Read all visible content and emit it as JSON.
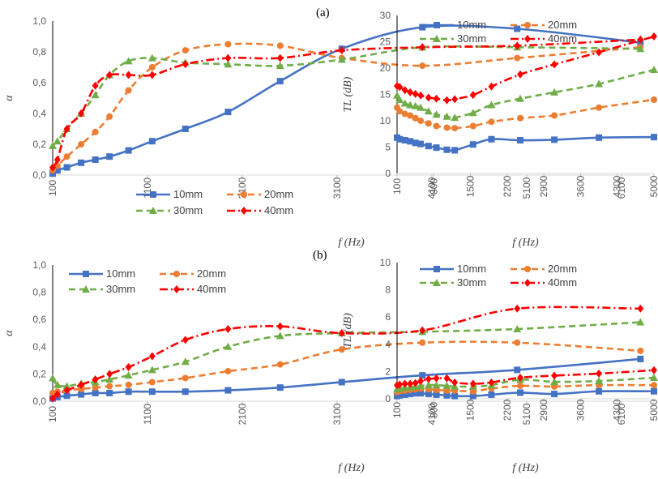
{
  "chart_data": [
    {
      "type": "line",
      "panel": "(a)",
      "xlabel": "f (Hz)",
      "ylabel": "α",
      "xlim": [
        100,
        6400
      ],
      "ylim": [
        0,
        1
      ],
      "xticks": [
        100,
        1100,
        2100,
        3100,
        4100,
        5100,
        6100
      ],
      "yticks": [
        0,
        0.2,
        0.4,
        0.6,
        0.8,
        1.0
      ],
      "ytick_labels": [
        "0,0",
        "0,2",
        "0,4",
        "0,6",
        "0,8",
        "1,0"
      ],
      "legend": "bottom-right",
      "series": [
        {
          "name": "10mm",
          "color": "#4472c4",
          "dash": "solid",
          "marker": "square",
          "x": [
            100,
            150,
            250,
            400,
            550,
            700,
            900,
            1150,
            1500,
            1950,
            2500,
            3150,
            4000,
            5000,
            6300
          ],
          "y": [
            0.01,
            0.03,
            0.05,
            0.08,
            0.1,
            0.12,
            0.16,
            0.22,
            0.3,
            0.41,
            0.61,
            0.82,
            0.96,
            0.95,
            0.86
          ]
        },
        {
          "name": "20mm",
          "color": "#ed7d31",
          "dash": "dash",
          "marker": "circle",
          "x": [
            100,
            150,
            250,
            400,
            550,
            700,
            900,
            1150,
            1500,
            1950,
            2500,
            3150,
            4000,
            5000,
            6300
          ],
          "y": [
            0.03,
            0.06,
            0.12,
            0.2,
            0.28,
            0.38,
            0.55,
            0.7,
            0.81,
            0.85,
            0.84,
            0.76,
            0.71,
            0.76,
            0.83
          ]
        },
        {
          "name": "30mm",
          "color": "#70ad47",
          "dash": "dash",
          "marker": "triangle",
          "x": [
            100,
            150,
            250,
            400,
            550,
            700,
            900,
            1150,
            1500,
            1950,
            2500,
            3150,
            4000,
            5000,
            6300
          ],
          "y": [
            0.19,
            0.22,
            0.3,
            0.4,
            0.52,
            0.65,
            0.74,
            0.76,
            0.73,
            0.72,
            0.71,
            0.75,
            0.83,
            0.83,
            0.82
          ]
        },
        {
          "name": "40mm",
          "color": "#ff0000",
          "dash": "dashdot",
          "marker": "diamond",
          "x": [
            100,
            150,
            250,
            400,
            550,
            700,
            900,
            1150,
            1500,
            1950,
            2500,
            3150,
            4000,
            5000,
            6300
          ],
          "y": [
            0.05,
            0.1,
            0.3,
            0.4,
            0.58,
            0.65,
            0.65,
            0.65,
            0.72,
            0.76,
            0.76,
            0.81,
            0.83,
            0.84,
            0.88
          ]
        }
      ]
    },
    {
      "type": "line",
      "panel": "(a)",
      "xlabel": "f (Hz)",
      "ylabel": "TL (dB)",
      "xlim": [
        100,
        5000
      ],
      "ylim": [
        0,
        30
      ],
      "xticks": [
        100,
        800,
        1500,
        2200,
        2900,
        3600,
        4300,
        5000
      ],
      "yticks": [
        0,
        5,
        10,
        15,
        20,
        25,
        30
      ],
      "legend": "top",
      "series": [
        {
          "name": "10mm",
          "color": "#4472c4",
          "dash": "solid",
          "marker": "square",
          "x": [
            100,
            150,
            250,
            350,
            450,
            550,
            700,
            850,
            1050,
            1200,
            1550,
            1900,
            2450,
            3100,
            3950,
            5000
          ],
          "y": [
            6.8,
            6.5,
            6.3,
            6.1,
            5.8,
            5.6,
            5.2,
            4.9,
            4.5,
            4.4,
            5.5,
            6.5,
            6.3,
            6.4,
            6.8,
            6.9
          ]
        },
        {
          "name": "20mm",
          "color": "#ed7d31",
          "dash": "dash",
          "marker": "circle",
          "x": [
            100,
            150,
            250,
            350,
            450,
            550,
            700,
            850,
            1050,
            1200,
            1550,
            1900,
            2450,
            3100,
            3950,
            5000
          ],
          "y": [
            12.5,
            11.8,
            11.3,
            11.0,
            10.5,
            10.0,
            9.5,
            9.0,
            8.7,
            8.6,
            9.0,
            9.8,
            10.5,
            11.0,
            12.5,
            14.0
          ]
        },
        {
          "name": "30mm",
          "color": "#70ad47",
          "dash": "dash",
          "marker": "triangle",
          "x": [
            100,
            150,
            250,
            350,
            450,
            550,
            700,
            850,
            1050,
            1200,
            1550,
            1900,
            2450,
            3100,
            3950,
            5000
          ],
          "y": [
            14.8,
            14.0,
            13.3,
            13.0,
            12.8,
            12.5,
            11.8,
            11.2,
            10.8,
            10.6,
            11.5,
            13.0,
            14.2,
            15.4,
            17.0,
            19.7
          ]
        },
        {
          "name": "40mm",
          "color": "#ff0000",
          "dash": "dashdot",
          "marker": "diamond",
          "x": [
            100,
            150,
            250,
            350,
            450,
            550,
            700,
            850,
            1050,
            1200,
            1550,
            1900,
            2450,
            3100,
            3950,
            5000
          ],
          "y": [
            16.6,
            16.4,
            15.8,
            15.4,
            15.1,
            14.8,
            14.4,
            14.2,
            13.9,
            14.1,
            14.9,
            16.5,
            18.8,
            20.7,
            23.0,
            26.0
          ]
        }
      ]
    },
    {
      "type": "line",
      "panel": "(b)",
      "xlabel": "f (Hz)",
      "ylabel": "α",
      "xlim": [
        100,
        6400
      ],
      "ylim": [
        0,
        1
      ],
      "xticks": [
        100,
        1100,
        2100,
        3100,
        4100,
        5100,
        6100
      ],
      "yticks": [
        0,
        0.2,
        0.4,
        0.6,
        0.8,
        1.0
      ],
      "ytick_labels": [
        "0,0",
        "0,2",
        "0,4",
        "0,6",
        "0,8",
        "1,0"
      ],
      "legend": "top-left",
      "series": [
        {
          "name": "10mm",
          "color": "#4472c4",
          "dash": "solid",
          "marker": "square",
          "x": [
            100,
            150,
            250,
            400,
            550,
            700,
            900,
            1150,
            1500,
            1950,
            2500,
            3150,
            4000,
            5000,
            6300
          ],
          "y": [
            0.02,
            0.03,
            0.04,
            0.05,
            0.06,
            0.06,
            0.07,
            0.07,
            0.07,
            0.08,
            0.1,
            0.14,
            0.19,
            0.23,
            0.31
          ]
        },
        {
          "name": "20mm",
          "color": "#ed7d31",
          "dash": "dash",
          "marker": "circle",
          "x": [
            100,
            150,
            250,
            400,
            550,
            700,
            900,
            1150,
            1500,
            1950,
            2500,
            3150,
            4000,
            5000,
            6300
          ],
          "y": [
            0.06,
            0.07,
            0.08,
            0.09,
            0.1,
            0.11,
            0.12,
            0.14,
            0.17,
            0.22,
            0.27,
            0.38,
            0.43,
            0.43,
            0.37
          ]
        },
        {
          "name": "30mm",
          "color": "#70ad47",
          "dash": "dash",
          "marker": "triangle",
          "x": [
            100,
            150,
            250,
            400,
            550,
            700,
            900,
            1150,
            1500,
            1950,
            2500,
            3150,
            4000,
            5000,
            6300
          ],
          "y": [
            0.17,
            0.12,
            0.11,
            0.13,
            0.14,
            0.16,
            0.19,
            0.23,
            0.29,
            0.4,
            0.48,
            0.5,
            0.51,
            0.53,
            0.58
          ]
        },
        {
          "name": "40mm",
          "color": "#ff0000",
          "dash": "dashdot",
          "marker": "diamond",
          "x": [
            100,
            150,
            250,
            400,
            550,
            700,
            900,
            1150,
            1500,
            1950,
            2500,
            3150,
            4000,
            5000,
            6300
          ],
          "y": [
            0.02,
            0.05,
            0.08,
            0.12,
            0.16,
            0.2,
            0.25,
            0.33,
            0.45,
            0.53,
            0.55,
            0.5,
            0.52,
            0.68,
            0.68
          ]
        }
      ]
    },
    {
      "type": "line",
      "panel": "(b)",
      "xlabel": "f (Hz)",
      "ylabel": "TL (dB)",
      "xlim": [
        100,
        5000
      ],
      "ylim": [
        0,
        10
      ],
      "xticks": [
        100,
        800,
        1500,
        2200,
        2900,
        3600,
        4300,
        5000
      ],
      "yticks": [
        0,
        2,
        4,
        6,
        8,
        10
      ],
      "legend": "top",
      "series": [
        {
          "name": "10mm",
          "color": "#4472c4",
          "dash": "solid",
          "marker": "square",
          "x": [
            100,
            150,
            250,
            350,
            450,
            550,
            700,
            850,
            1050,
            1200,
            1550,
            1900,
            2450,
            3100,
            3950,
            5000
          ],
          "y": [
            0.2,
            0.25,
            0.3,
            0.35,
            0.4,
            0.4,
            0.35,
            0.3,
            0.25,
            0.2,
            0.2,
            0.3,
            0.45,
            0.35,
            0.55,
            0.55
          ]
        },
        {
          "name": "20mm",
          "color": "#ed7d31",
          "dash": "dash",
          "marker": "circle",
          "x": [
            100,
            150,
            250,
            350,
            450,
            550,
            700,
            850,
            1050,
            1200,
            1550,
            1900,
            2450,
            3100,
            3950,
            5000
          ],
          "y": [
            0.5,
            0.55,
            0.6,
            0.65,
            0.7,
            0.75,
            0.7,
            0.65,
            0.6,
            0.6,
            0.55,
            0.75,
            0.95,
            0.9,
            1.0,
            1.0
          ]
        },
        {
          "name": "30mm",
          "color": "#70ad47",
          "dash": "dash",
          "marker": "triangle",
          "x": [
            100,
            150,
            250,
            350,
            450,
            550,
            700,
            850,
            1050,
            1200,
            1550,
            1900,
            2450,
            3100,
            3950,
            5000
          ],
          "y": [
            0.7,
            0.75,
            0.8,
            0.85,
            0.9,
            0.95,
            1.0,
            1.0,
            0.95,
            0.9,
            0.9,
            1.0,
            1.4,
            1.25,
            1.3,
            1.55
          ]
        },
        {
          "name": "40mm",
          "color": "#ff0000",
          "dash": "dashdot",
          "marker": "diamond",
          "x": [
            100,
            150,
            250,
            350,
            450,
            550,
            700,
            850,
            1050,
            1200,
            1550,
            1900,
            2450,
            3100,
            3950,
            5000
          ],
          "y": [
            1.0,
            1.05,
            1.1,
            1.1,
            1.15,
            1.3,
            1.45,
            1.5,
            1.5,
            1.2,
            1.1,
            1.2,
            1.55,
            1.7,
            1.85,
            2.1
          ]
        }
      ]
    }
  ]
}
